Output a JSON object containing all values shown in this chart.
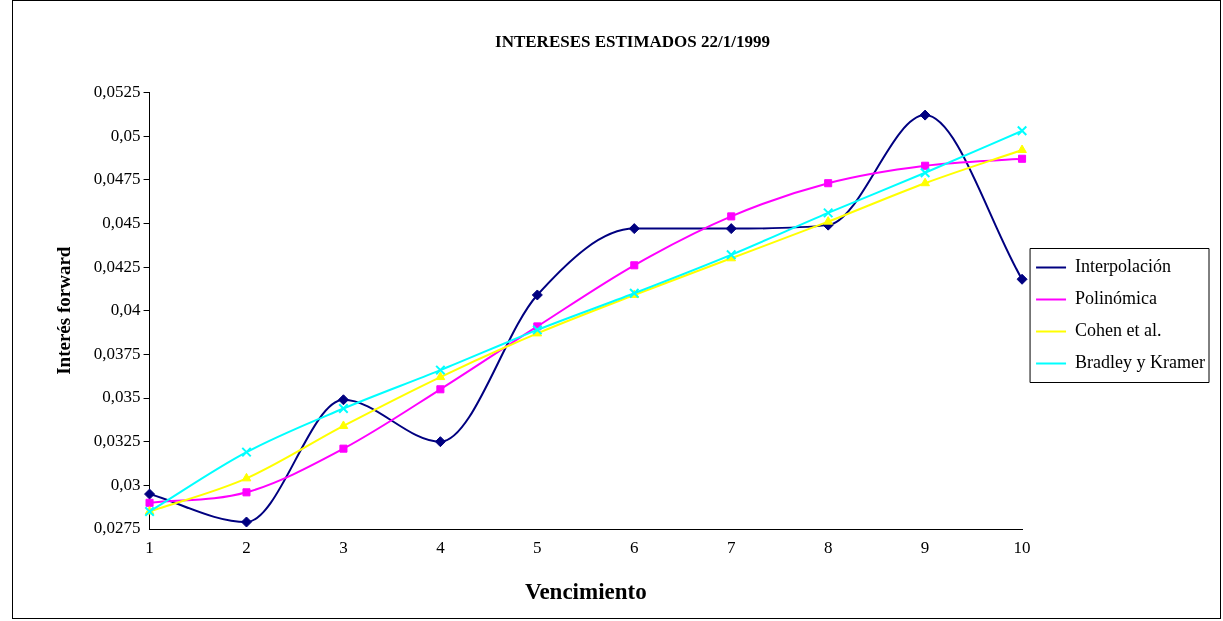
{
  "chart_data": {
    "type": "line",
    "title": "INTERESES ESTIMADOS 22/1/1999",
    "xlabel": "Vencimiento",
    "ylabel": "Interés forward",
    "x": [
      1,
      2,
      3,
      4,
      5,
      6,
      7,
      8,
      9,
      10
    ],
    "xlim": [
      1,
      10
    ],
    "xticks": [
      1,
      2,
      3,
      4,
      5,
      6,
      7,
      8,
      9,
      10
    ],
    "ylim": [
      0.0275,
      0.0525
    ],
    "yticks": [
      {
        "value": 0.0275,
        "label": "0,0275"
      },
      {
        "value": 0.03,
        "label": "0,03"
      },
      {
        "value": 0.0325,
        "label": "0,0325"
      },
      {
        "value": 0.035,
        "label": "0,035"
      },
      {
        "value": 0.0375,
        "label": "0,0375"
      },
      {
        "value": 0.04,
        "label": "0,04"
      },
      {
        "value": 0.0425,
        "label": "0,0425"
      },
      {
        "value": 0.045,
        "label": "0,045"
      },
      {
        "value": 0.0475,
        "label": "0,0475"
      },
      {
        "value": 0.05,
        "label": "0,05"
      },
      {
        "value": 0.0525,
        "label": "0,0525"
      }
    ],
    "grid": false,
    "legend": "right",
    "line_style": "solid",
    "series": [
      {
        "name": "Interpolación",
        "color": "#000080",
        "marker": "diamond",
        "values": [
          0.0295,
          0.0279,
          0.0349,
          0.0325,
          0.0409,
          0.0447,
          0.0447,
          0.0449,
          0.0512,
          0.0418
        ]
      },
      {
        "name": "Polinómica",
        "color": "#ff00ff",
        "marker": "square",
        "values": [
          0.029,
          0.0296,
          0.0321,
          0.0355,
          0.0391,
          0.0426,
          0.0454,
          0.0473,
          0.0483,
          0.0487
        ]
      },
      {
        "name": "Cohen et al.",
        "color": "#ffff00",
        "marker": "triangle",
        "values": [
          0.0285,
          0.0304,
          0.0334,
          0.0362,
          0.0387,
          0.0409,
          0.043,
          0.0451,
          0.0473,
          0.0492
        ]
      },
      {
        "name": "Bradley y Kramer",
        "color": "#00ffff",
        "marker": "cross",
        "values": [
          0.0285,
          0.0319,
          0.0344,
          0.0366,
          0.0389,
          0.041,
          0.0432,
          0.0456,
          0.0479,
          0.0503
        ]
      }
    ]
  }
}
